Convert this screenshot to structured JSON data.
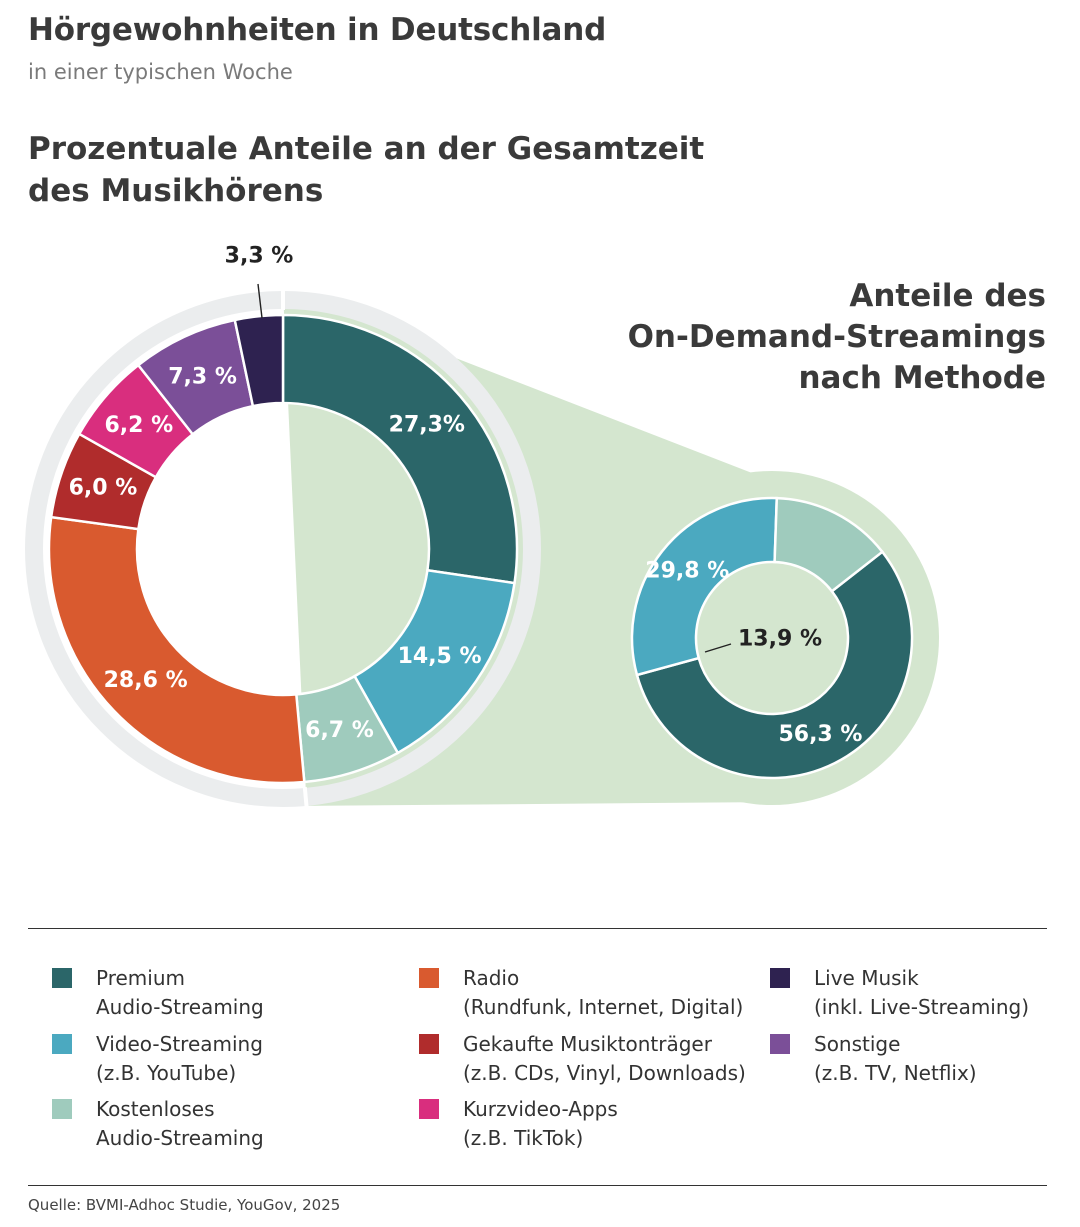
{
  "title": "Hörgewohnheiten in Deutschland",
  "subtitle": "in einer typischen Woche",
  "heading": [
    "Prozentuale Anteile an der Gesamtzeit",
    "des Musikhörens"
  ],
  "right_heading": [
    "Anteile des",
    "On-Demand-Streamings",
    "nach Methode"
  ],
  "source": "Quelle: BVMI-Adhoc Studie, YouGov, 2025",
  "colors": {
    "premium": "#2b6669",
    "video": "#4ba9c0",
    "kostenlos": "#9fcbbd",
    "radio": "#d95a2f",
    "gekauft": "#b02c2c",
    "kurzvideo": "#d92e7e",
    "sonstige": "#7b4f98",
    "live": "#2e2250",
    "ring": "#ebedee",
    "zoom": "#d4e6cf"
  },
  "legend": [
    {
      "key": "premium",
      "lines": [
        "Premium",
        "Audio-Streaming"
      ]
    },
    {
      "key": "video",
      "lines": [
        "Video-Streaming",
        "(z.B. YouTube)"
      ]
    },
    {
      "key": "kostenlos",
      "lines": [
        "Kostenloses",
        "Audio-Streaming"
      ]
    },
    {
      "key": "radio",
      "lines": [
        "Radio",
        "(Rundfunk, Internet, Digital)"
      ]
    },
    {
      "key": "gekauft",
      "lines": [
        "Gekaufte Musiktonträger",
        "(z.B. CDs, Vinyl, Downloads)"
      ]
    },
    {
      "key": "kurzvideo",
      "lines": [
        "Kurzvideo-Apps",
        "(z.B. TikTok)"
      ]
    },
    {
      "key": "live",
      "lines": [
        "Live Musik",
        "(inkl. Live-Streaming)"
      ]
    },
    {
      "key": "sonstige",
      "lines": [
        "Sonstige",
        "(z.B. TV, Netflix)"
      ]
    }
  ],
  "chart_data": [
    {
      "type": "pie",
      "title": "Prozentuale Anteile an der Gesamtzeit des Musikhörens",
      "slices": [
        {
          "key": "premium",
          "name": "Premium Audio-Streaming",
          "value": 27.3,
          "label": "27,3%"
        },
        {
          "key": "video",
          "name": "Video-Streaming",
          "value": 14.5,
          "label": "14,5 %"
        },
        {
          "key": "kostenlos",
          "name": "Kostenloses Audio-Streaming",
          "value": 6.7,
          "label": "6,7 %"
        },
        {
          "key": "radio",
          "name": "Radio",
          "value": 28.6,
          "label": "28,6 %"
        },
        {
          "key": "gekauft",
          "name": "Gekaufte Musiktonträger",
          "value": 6.0,
          "label": "6,0 %"
        },
        {
          "key": "kurzvideo",
          "name": "Kurzvideo-Apps",
          "value": 6.2,
          "label": "6,2 %"
        },
        {
          "key": "sonstige",
          "name": "Sonstige",
          "value": 7.3,
          "label": "7,3 %"
        },
        {
          "key": "live",
          "name": "Live Musik",
          "value": 3.3,
          "label": "3,3 %"
        }
      ]
    },
    {
      "type": "pie",
      "title": "Anteile des On-Demand-Streamings nach Methode",
      "slices": [
        {
          "key": "premium",
          "name": "Premium Audio-Streaming",
          "value": 56.3,
          "label": "56,3 %"
        },
        {
          "key": "video",
          "name": "Video-Streaming",
          "value": 29.8,
          "label": "29,8 %"
        },
        {
          "key": "kostenlos",
          "name": "Kostenloses Audio-Streaming",
          "value": 13.9,
          "label": "13,9 %"
        }
      ]
    }
  ]
}
